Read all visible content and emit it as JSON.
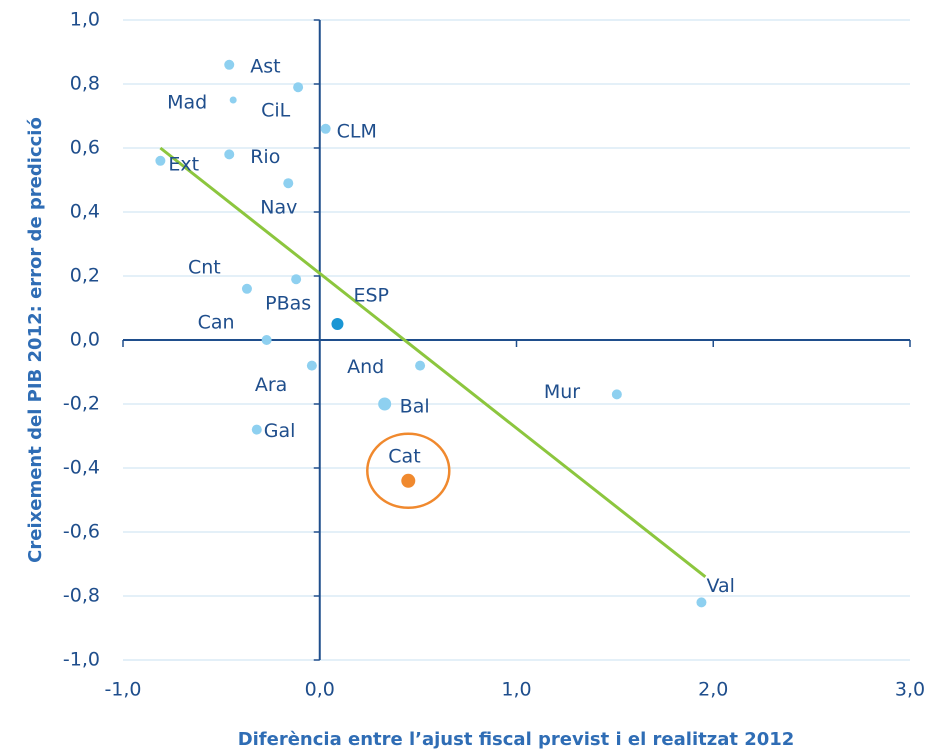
{
  "chart_data": {
    "type": "scatter",
    "xlabel": "Diferència entre l’ajust fiscal previst i el realitzat 2012",
    "ylabel": "Creixement del PIB 2012: error de predicció",
    "labels": [
      "Ast",
      "Mad",
      "CiL",
      "CLM",
      "Ext",
      "Rio",
      "Nav",
      "Cnt",
      "PBas",
      "ESP",
      "Can",
      "Ara",
      "And",
      "Mur",
      "Bal",
      "Gal",
      "Cat",
      "Val"
    ],
    "x": [
      -0.46,
      -0.44,
      -0.11,
      0.03,
      -0.81,
      -0.46,
      -0.16,
      -0.37,
      -0.12,
      0.09,
      -0.27,
      -0.04,
      0.51,
      1.51,
      0.33,
      -0.32,
      0.45,
      1.94
    ],
    "y": [
      0.86,
      0.75,
      0.79,
      0.66,
      0.56,
      0.58,
      0.49,
      0.16,
      0.19,
      0.05,
      0.0,
      -0.08,
      -0.08,
      -0.17,
      -0.2,
      -0.28,
      -0.44,
      -0.82
    ],
    "colors": [
      "#8ed0f0",
      "#8ed0f0",
      "#8ed0f0",
      "#8ed0f0",
      "#8ed0f0",
      "#8ed0f0",
      "#8ed0f0",
      "#8ed0f0",
      "#8ed0f0",
      "#1a96d4",
      "#8ed0f0",
      "#8ed0f0",
      "#8ed0f0",
      "#8ed0f0",
      "#8ed0f0",
      "#8ed0f0",
      "#f0892e",
      "#8ed0f0"
    ],
    "trendline": {
      "x": [
        -0.81,
        1.96
      ],
      "y": [
        0.6,
        -0.74
      ],
      "color": "#8cc63e"
    },
    "highlight_color": "#f0892e",
    "xlim": [
      -1.0,
      3.0
    ],
    "xticks": [
      {
        "value": -1.0,
        "label": "-1,0"
      },
      {
        "value": 0.0,
        "label": "0,0"
      },
      {
        "value": 1.0,
        "label": "1,0"
      },
      {
        "value": 2.0,
        "label": "2,0"
      },
      {
        "value": 3.0,
        "label": "3,0"
      }
    ],
    "ylim": [
      -1.0,
      1.0
    ],
    "yticks": [
      {
        "value": -1.0,
        "label": "-1,0"
      },
      {
        "value": -0.8,
        "label": "-0,8"
      },
      {
        "value": -0.6,
        "label": "-0,6"
      },
      {
        "value": -0.4,
        "label": "-0,4"
      },
      {
        "value": -0.2,
        "label": "-0,2"
      },
      {
        "value": 0.0,
        "label": "0,0"
      },
      {
        "value": 0.2,
        "label": "0,2"
      },
      {
        "value": 0.4,
        "label": "0,4"
      },
      {
        "value": 0.6,
        "label": "0,6"
      },
      {
        "value": 0.8,
        "label": "0,8"
      },
      {
        "value": 1.0,
        "label": "1,0"
      }
    ],
    "grid": true
  }
}
